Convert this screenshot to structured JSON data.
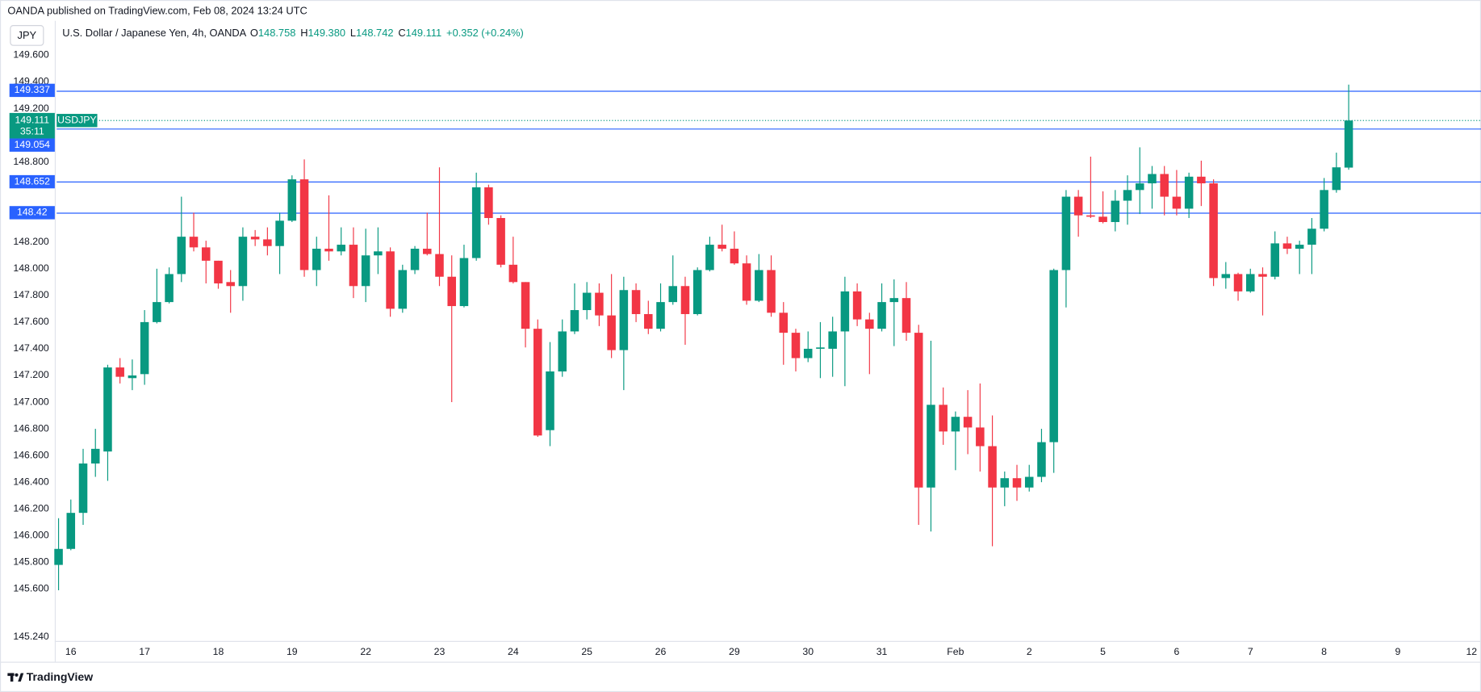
{
  "header": {
    "publisher": "OANDA published on TradingView.com, Feb 08, 2024 13:24 UTC"
  },
  "currency_button": "JPY",
  "chart_data": {
    "type": "candlestick",
    "title": "U.S. Dollar / Japanese Yen, 4h, OANDA",
    "legend": [
      {
        "key": "O",
        "value": "148.758"
      },
      {
        "key": "H",
        "value": "149.380"
      },
      {
        "key": "L",
        "value": "148.742"
      },
      {
        "key": "C",
        "value": "149.111"
      }
    ],
    "change": "+0.352 (+0.24%)",
    "categories": [
      null,
      "16",
      null,
      null,
      null,
      null,
      null,
      "17",
      null,
      null,
      null,
      null,
      null,
      "18",
      null,
      null,
      null,
      null,
      null,
      "19",
      null,
      null,
      null,
      null,
      null,
      "22",
      null,
      null,
      null,
      null,
      null,
      "23",
      null,
      null,
      null,
      null,
      null,
      "24",
      null,
      null,
      null,
      null,
      null,
      "25",
      null,
      null,
      null,
      null,
      null,
      "26",
      null,
      null,
      null,
      null,
      null,
      "29",
      null,
      null,
      null,
      null,
      null,
      "30",
      null,
      null,
      null,
      null,
      null,
      "31",
      null,
      null,
      null,
      null,
      null,
      "Feb",
      null,
      null,
      null,
      null,
      null,
      "2",
      null,
      null,
      null,
      null,
      null,
      "5",
      null,
      null,
      null,
      null,
      null,
      "6",
      null,
      null,
      null,
      null,
      null,
      "7",
      null,
      null,
      null,
      null,
      null,
      "8",
      null,
      null,
      null,
      null,
      null,
      "9",
      null,
      null,
      null,
      null,
      null,
      "12"
    ],
    "open": [
      145.78,
      145.9,
      146.17,
      146.54,
      146.63,
      147.26,
      147.18,
      147.21,
      147.6,
      147.75,
      147.96,
      148.24,
      148.16,
      148.06,
      147.9,
      147.87,
      148.24,
      148.22,
      148.17,
      148.36,
      148.67,
      147.99,
      148.15,
      148.13,
      148.18,
      147.87,
      148.1,
      148.13,
      147.7,
      147.99,
      148.15,
      148.11,
      147.94,
      147.72,
      148.08,
      148.61,
      148.38,
      148.03,
      147.9,
      147.55,
      146.79,
      147.23,
      147.53,
      147.69,
      147.82,
      147.65,
      147.39,
      147.84,
      147.66,
      147.55,
      147.75,
      147.87,
      147.66,
      147.99,
      148.18,
      148.15,
      148.04,
      147.76,
      147.99,
      147.67,
      147.52,
      147.33,
      147.4,
      147.4,
      147.53,
      147.83,
      147.62,
      147.55,
      147.75,
      147.78,
      147.52,
      146.36,
      146.98,
      146.78,
      146.89,
      146.81,
      146.67,
      146.36,
      146.43,
      146.36,
      146.44,
      146.7,
      147.99,
      148.54,
      148.4,
      148.39,
      148.35,
      148.51,
      148.59,
      148.64,
      148.71,
      148.54,
      148.45,
      148.69,
      148.64,
      147.93,
      147.96,
      147.83,
      147.96,
      147.94,
      148.19,
      148.15,
      148.18,
      148.3,
      148.59,
      148.758,
      null,
      null,
      null,
      null,
      null,
      null,
      null,
      null,
      null,
      null
    ],
    "high": [
      146.13,
      146.27,
      146.65,
      146.8,
      147.28,
      147.33,
      147.32,
      147.69,
      148.0,
      148.01,
      148.54,
      148.42,
      148.21,
      148.06,
      147.99,
      148.31,
      148.29,
      148.31,
      148.42,
      148.7,
      148.82,
      148.24,
      148.55,
      148.31,
      148.31,
      148.3,
      148.31,
      148.16,
      148.03,
      148.17,
      148.42,
      148.76,
      148.1,
      148.18,
      148.72,
      148.63,
      148.4,
      148.24,
      147.9,
      147.62,
      147.45,
      147.62,
      147.89,
      147.9,
      147.89,
      147.96,
      147.94,
      147.89,
      147.76,
      147.89,
      148.1,
      147.94,
      148.01,
      148.24,
      148.33,
      148.28,
      148.1,
      148.11,
      148.1,
      147.75,
      147.55,
      147.53,
      147.6,
      147.64,
      147.94,
      147.89,
      147.67,
      147.89,
      147.92,
      147.9,
      147.58,
      147.46,
      147.11,
      146.93,
      147.09,
      147.14,
      146.9,
      146.48,
      146.53,
      146.53,
      146.8,
      148.0,
      148.59,
      148.59,
      148.84,
      148.58,
      148.59,
      148.7,
      148.91,
      148.77,
      148.77,
      148.74,
      148.72,
      148.81,
      148.67,
      148.05,
      147.97,
      148.0,
      148.01,
      148.28,
      148.24,
      148.21,
      148.38,
      148.68,
      148.87,
      149.38,
      null,
      null,
      null,
      null,
      null,
      null,
      null,
      null,
      null,
      null
    ],
    "low": [
      145.59,
      145.89,
      146.08,
      146.44,
      146.41,
      147.14,
      147.09,
      147.13,
      147.59,
      147.74,
      147.9,
      148.13,
      147.89,
      147.85,
      147.67,
      147.76,
      148.17,
      148.1,
      147.96,
      148.35,
      147.94,
      147.87,
      148.06,
      148.1,
      147.78,
      147.75,
      147.96,
      147.64,
      147.67,
      147.96,
      148.1,
      147.87,
      147.0,
      147.71,
      148.06,
      148.33,
      148.01,
      147.89,
      147.41,
      146.74,
      146.67,
      147.19,
      147.51,
      147.62,
      147.57,
      147.33,
      147.09,
      147.6,
      147.51,
      147.53,
      147.73,
      147.43,
      147.65,
      147.98,
      148.13,
      148.03,
      147.73,
      147.75,
      147.64,
      147.28,
      147.23,
      147.3,
      147.18,
      147.19,
      147.12,
      147.57,
      147.21,
      147.53,
      147.42,
      147.46,
      146.08,
      146.03,
      146.68,
      146.49,
      146.61,
      146.48,
      145.92,
      146.22,
      146.26,
      146.33,
      146.4,
      146.47,
      147.71,
      148.24,
      148.38,
      148.34,
      148.28,
      148.33,
      148.41,
      148.45,
      148.4,
      148.4,
      148.38,
      148.47,
      147.87,
      147.85,
      147.76,
      147.82,
      147.65,
      147.92,
      148.11,
      147.96,
      147.96,
      148.28,
      148.57,
      148.742,
      null,
      null,
      null,
      null,
      null,
      null,
      null,
      null,
      null,
      null
    ],
    "close": [
      145.9,
      146.17,
      146.54,
      146.65,
      147.26,
      147.19,
      147.2,
      147.6,
      147.75,
      147.96,
      148.24,
      148.16,
      148.06,
      147.89,
      147.87,
      148.24,
      148.22,
      148.17,
      148.36,
      148.67,
      147.99,
      148.15,
      148.13,
      148.18,
      147.87,
      148.1,
      148.13,
      147.7,
      147.99,
      148.15,
      148.11,
      147.94,
      147.72,
      148.08,
      148.61,
      148.38,
      148.03,
      147.9,
      147.55,
      146.75,
      147.23,
      147.53,
      147.69,
      147.82,
      147.65,
      147.39,
      147.84,
      147.66,
      147.55,
      147.75,
      147.87,
      147.66,
      147.99,
      148.18,
      148.15,
      148.04,
      147.76,
      147.99,
      147.67,
      147.52,
      147.33,
      147.4,
      147.41,
      147.53,
      147.83,
      147.62,
      147.55,
      147.75,
      147.78,
      147.52,
      146.36,
      146.98,
      146.78,
      146.89,
      146.81,
      146.67,
      146.36,
      146.43,
      146.36,
      146.44,
      146.7,
      147.99,
      148.54,
      148.4,
      148.39,
      148.35,
      148.51,
      148.59,
      148.64,
      148.71,
      148.54,
      148.45,
      148.69,
      148.64,
      147.93,
      147.96,
      147.83,
      147.96,
      147.94,
      148.19,
      148.15,
      148.18,
      148.3,
      148.59,
      148.76,
      149.111,
      null,
      null,
      null,
      null,
      null,
      null,
      null,
      null,
      null,
      null
    ],
    "up_color": "#089981",
    "down_color": "#f23645",
    "ylim": [
      145.21,
      149.83
    ],
    "yticks": [
      {
        "value": 145.24,
        "label": "145.240"
      },
      {
        "value": 145.6,
        "label": "145.600"
      },
      {
        "value": 145.8,
        "label": "145.800"
      },
      {
        "value": 146,
        "label": "146.000"
      },
      {
        "value": 146.2,
        "label": "146.200"
      },
      {
        "value": 146.4,
        "label": "146.400"
      },
      {
        "value": 146.6,
        "label": "146.600"
      },
      {
        "value": 146.8,
        "label": "146.800"
      },
      {
        "value": 147,
        "label": "147.000"
      },
      {
        "value": 147.2,
        "label": "147.200"
      },
      {
        "value": 147.4,
        "label": "147.400"
      },
      {
        "value": 147.6,
        "label": "147.600"
      },
      {
        "value": 147.8,
        "label": "147.800"
      },
      {
        "value": 148,
        "label": "148.000"
      },
      {
        "value": 148.2,
        "label": "148.200"
      },
      {
        "value": 148.8,
        "label": "148.800"
      },
      {
        "value": 149.2,
        "label": "149.200"
      },
      {
        "value": 149.4,
        "label": "149.400"
      },
      {
        "value": 149.6,
        "label": "149.600"
      }
    ],
    "levels": [
      149.337,
      149.054,
      148.652,
      148.42
    ],
    "level_color": "#2962ff",
    "last_price": {
      "value": 149.111,
      "symbol": "USDJPY",
      "countdown": "35:11"
    },
    "grid": false
  },
  "footer": {
    "brand": "TradingView"
  }
}
